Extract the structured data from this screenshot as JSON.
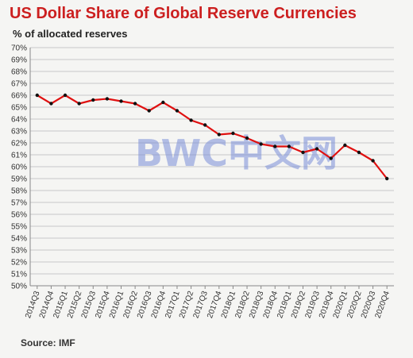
{
  "title": "US Dollar Share of Global  Reserve Currencies",
  "subtitle": "% of allocated reserves",
  "source": "Source: IMF",
  "watermark": "BWC中文网",
  "colors": {
    "title": "#cc1f1f",
    "line": "#e01010",
    "marker": "#111111",
    "grid": "#c8c8c8",
    "background": "#f5f5f3"
  },
  "chart_data": {
    "type": "line",
    "title": "US Dollar Share of Global  Reserve Currencies",
    "subtitle": "% of allocated reserves",
    "ylim": [
      50,
      70
    ],
    "grid": true,
    "y_ticks": [
      "50%",
      "51%",
      "52%",
      "53%",
      "54%",
      "55%",
      "56%",
      "57%",
      "58%",
      "59%",
      "60%",
      "61%",
      "62%",
      "63%",
      "64%",
      "65%",
      "66%",
      "67%",
      "68%",
      "69%",
      "70%"
    ],
    "categories": [
      "2014Q3",
      "2014Q4",
      "2015Q1",
      "2015Q2",
      "2015Q3",
      "2015Q4",
      "2016Q1",
      "2016Q2",
      "2016Q3",
      "2016Q4",
      "2017Q1",
      "2017Q2",
      "2017Q3",
      "2017Q4",
      "2018Q1",
      "2018Q2",
      "2018Q3",
      "2018Q4",
      "2019Q1",
      "2019Q2",
      "2019Q3",
      "2019Q4",
      "2020Q1",
      "2020Q2",
      "2020Q3",
      "2020Q4"
    ],
    "series": [
      {
        "values": [
          66.0,
          65.3,
          66.0,
          65.3,
          65.6,
          65.7,
          65.5,
          65.3,
          64.7,
          65.4,
          64.7,
          63.9,
          63.5,
          62.7,
          62.8,
          62.4,
          61.9,
          61.7,
          61.7,
          61.2,
          61.5,
          60.7,
          61.8,
          61.2,
          60.5,
          59.0
        ]
      }
    ],
    "source": "Source: IMF"
  }
}
